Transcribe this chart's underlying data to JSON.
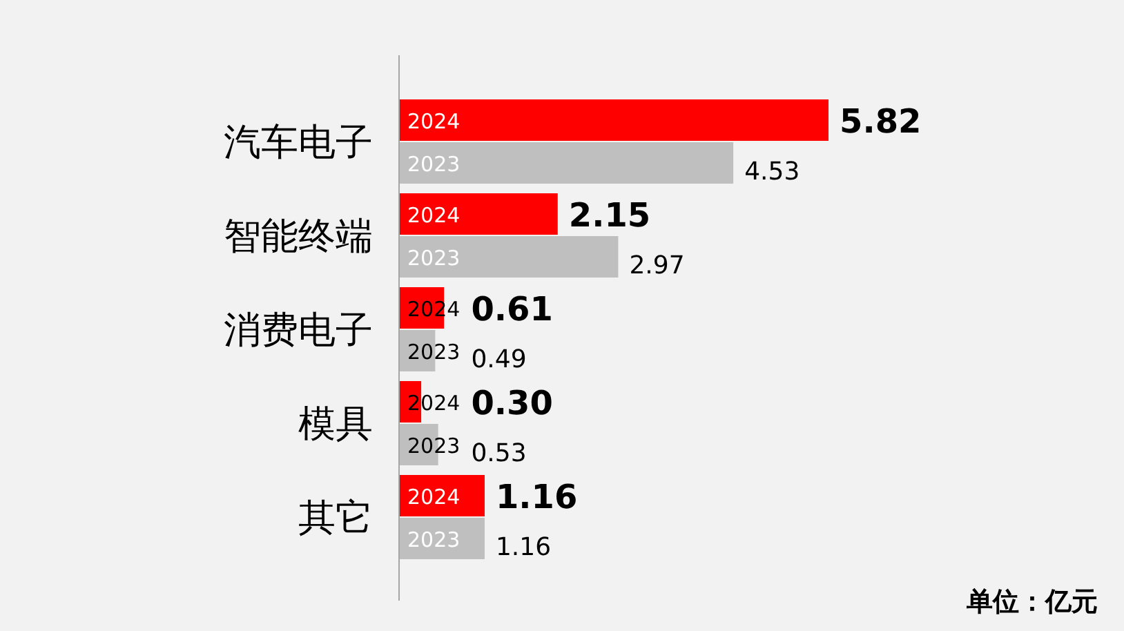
{
  "chart_data": {
    "type": "bar",
    "orientation": "horizontal",
    "categories": [
      "汽车电子",
      "智能终端",
      "消费电子",
      "模具",
      "其它"
    ],
    "series": [
      {
        "name": "2024",
        "color": "#ff0000",
        "values": [
          5.82,
          2.15,
          0.61,
          0.3,
          1.16
        ],
        "value_labels": [
          "5.82",
          "2.15",
          "0.61",
          "0.30",
          "1.16"
        ]
      },
      {
        "name": "2023",
        "color": "#bfbfbf",
        "values": [
          4.53,
          2.97,
          0.49,
          0.53,
          1.16
        ],
        "value_labels": [
          "4.53",
          "2.97",
          "0.49",
          "0.53",
          "1.16"
        ]
      }
    ],
    "annotations": [
      "单位：亿元"
    ]
  }
}
